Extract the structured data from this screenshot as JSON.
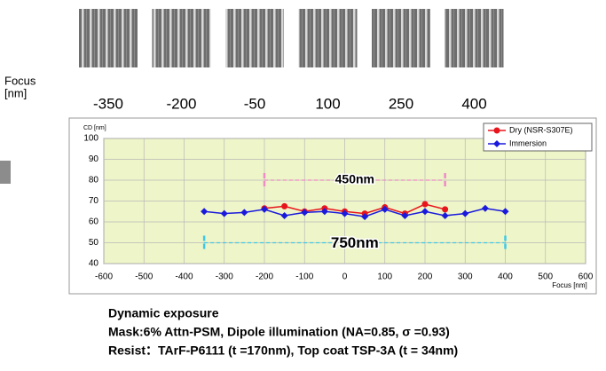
{
  "sem_panel": {
    "axis_label": [
      "Focus",
      "[nm]"
    ],
    "focus_labels": [
      "-350",
      "-200",
      "-50",
      "100",
      "250",
      "400"
    ]
  },
  "chart_data": {
    "type": "line",
    "x": [
      -350,
      -300,
      -250,
      -200,
      -150,
      -100,
      -50,
      0,
      50,
      100,
      150,
      200,
      250,
      300,
      350,
      400
    ],
    "series": [
      {
        "name": "Dry (NSR-S307E)",
        "color": "#e8141b",
        "marker": "circle",
        "values": [
          null,
          null,
          null,
          66.5,
          67.5,
          65,
          66.5,
          65,
          64,
          67,
          64,
          68.5,
          66,
          null,
          null,
          null
        ]
      },
      {
        "name": "Immersion",
        "color": "#1a1adc",
        "marker": "diamond",
        "values": [
          65,
          64,
          64.5,
          66,
          63,
          64.5,
          65,
          64,
          62.5,
          66,
          63,
          65,
          63,
          64,
          66.5,
          65
        ]
      }
    ],
    "xlim": [
      -600,
      600
    ],
    "xticks": [
      -600,
      -500,
      -400,
      -300,
      -200,
      -100,
      0,
      100,
      200,
      300,
      400,
      500,
      600
    ],
    "ylim": [
      40,
      100
    ],
    "yticks": [
      40,
      50,
      60,
      70,
      80,
      90,
      100
    ],
    "xlabel": "Focus [nm]",
    "ylabel": "CD [nm]",
    "grid": true,
    "legend": "upper right",
    "annotations": [
      {
        "text": "450nm",
        "x": [
          -200,
          250
        ],
        "y": 80,
        "color": "#e8141b",
        "line_color": "#f08ac8"
      },
      {
        "text": "750nm",
        "x": [
          -350,
          400
        ],
        "y": 50,
        "color": "#1a1adc",
        "line_color": "#3ec8e8"
      }
    ]
  },
  "caption": [
    "Dynamic exposure",
    "Mask:6% Attn-PSM,  Dipole illumination (NA=0.85, σ =0.93)",
    "Resist：TArF-P6111 (t =170nm), Top coat TSP-3A (t = 34nm)"
  ]
}
